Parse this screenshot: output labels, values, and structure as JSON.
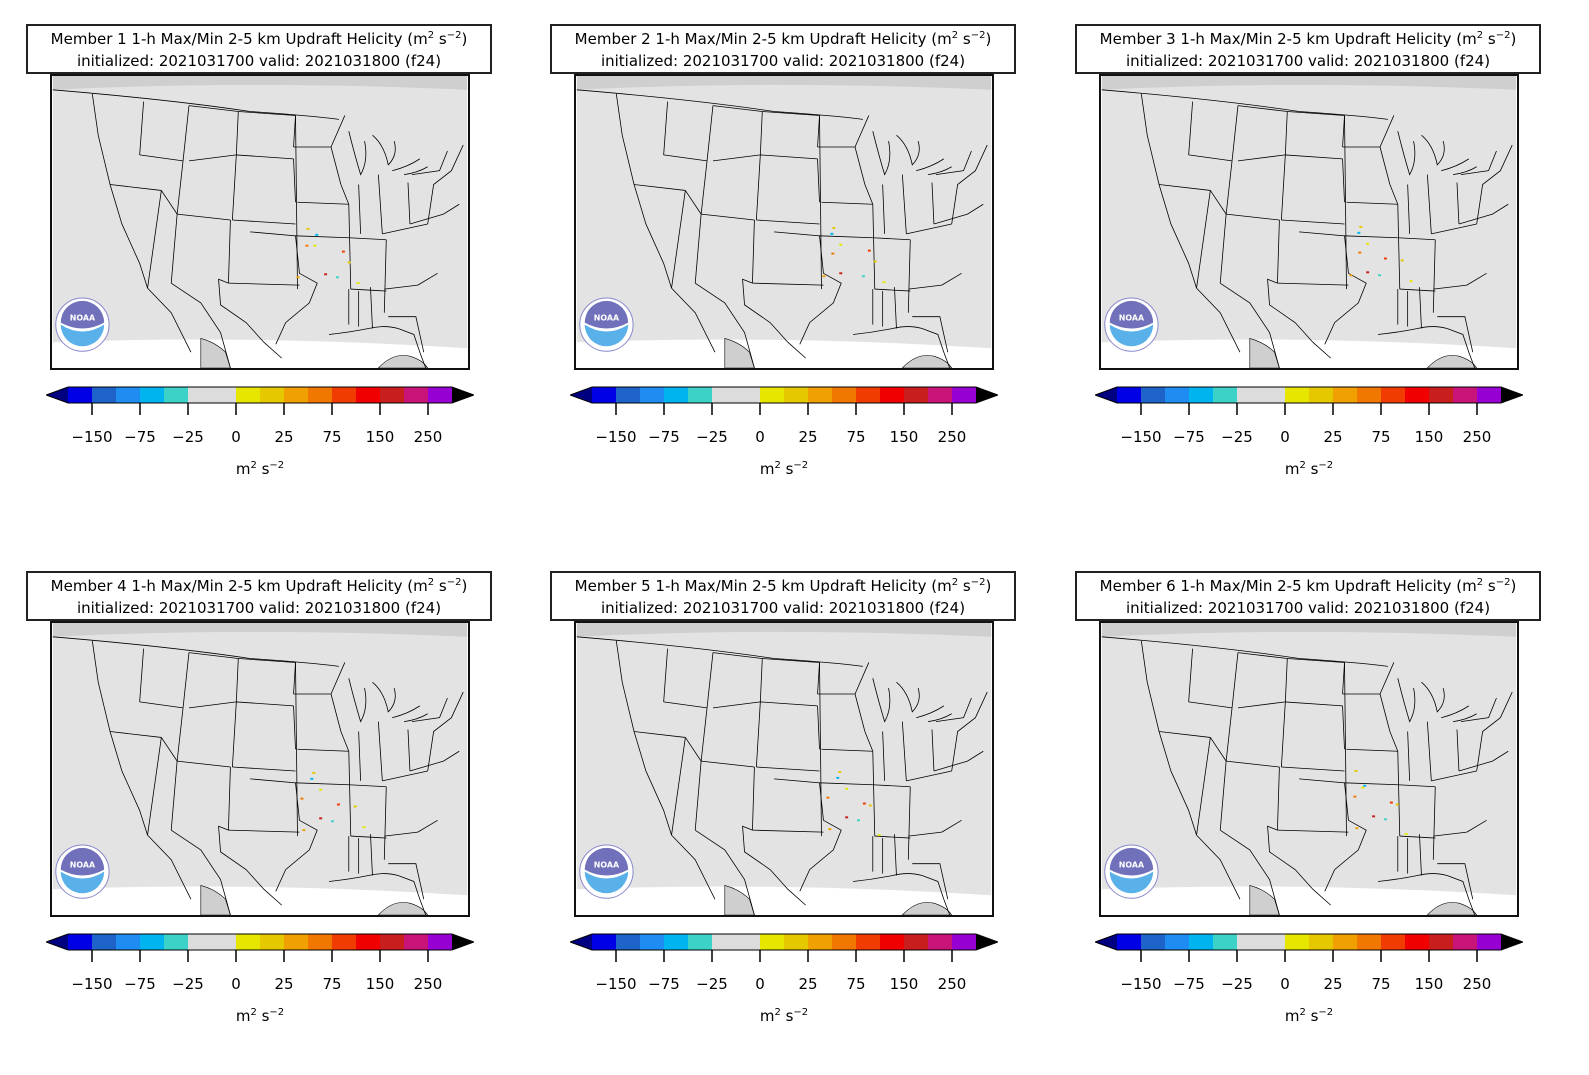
{
  "panels": [
    {
      "title_line1": "Member 1 1-h Max/Min 2-5 km Updraft Helicity (m",
      "title_sup": "2",
      "title_mid": " s",
      "title_sup2": "−2",
      "title_end": ")",
      "title_line2": "initialized: 2021031700 valid: 2021031800 (f24)"
    },
    {
      "title_line1": "Member 2 1-h Max/Min 2-5 km Updraft Helicity (m",
      "title_sup": "2",
      "title_mid": " s",
      "title_sup2": "−2",
      "title_end": ")",
      "title_line2": "initialized: 2021031700 valid: 2021031800 (f24)"
    },
    {
      "title_line1": "Member 3 1-h Max/Min 2-5 km Updraft Helicity (m",
      "title_sup": "2",
      "title_mid": " s",
      "title_sup2": "−2",
      "title_end": ")",
      "title_line2": "initialized: 2021031700 valid: 2021031800 (f24)"
    },
    {
      "title_line1": "Member 4 1-h Max/Min 2-5 km Updraft Helicity (m",
      "title_sup": "2",
      "title_mid": " s",
      "title_sup2": "−2",
      "title_end": ")",
      "title_line2": "initialized: 2021031700 valid: 2021031800 (f24)"
    },
    {
      "title_line1": "Member 5 1-h Max/Min 2-5 km Updraft Helicity (m",
      "title_sup": "2",
      "title_mid": " s",
      "title_sup2": "−2",
      "title_end": ")",
      "title_line2": "initialized: 2021031700 valid: 2021031800 (f24)"
    },
    {
      "title_line1": "Member 6 1-h Max/Min 2-5 km Updraft Helicity (m",
      "title_sup": "2",
      "title_mid": " s",
      "title_sup2": "−2",
      "title_end": ")",
      "title_line2": "initialized: 2021031700 valid: 2021031800 (f24)"
    }
  ],
  "colorbar": {
    "tick_labels": [
      "−150",
      "−75",
      "−25",
      "0",
      "25",
      "75",
      "150",
      "250"
    ],
    "unit_base": "m",
    "unit_sup": "2",
    "unit_mid": " s",
    "unit_sup2": "−2",
    "colors": [
      "#0000e6",
      "#1e64c8",
      "#1e8cf0",
      "#00b4f0",
      "#3cd2c8",
      "#dcdcdc",
      "#dcdcdc",
      "#e6e600",
      "#e6c800",
      "#f0a000",
      "#f07800",
      "#f03c00",
      "#f00000",
      "#c81e1e",
      "#c81478",
      "#9600d2"
    ],
    "extend_low": "#000080",
    "extend_high": "#000000"
  },
  "logo": {
    "icon": "noaa-logo",
    "text": "NOAA"
  },
  "map": {
    "land_color": "#e3e3e3",
    "background_color": "#ffffff",
    "border_color": "#000000"
  }
}
